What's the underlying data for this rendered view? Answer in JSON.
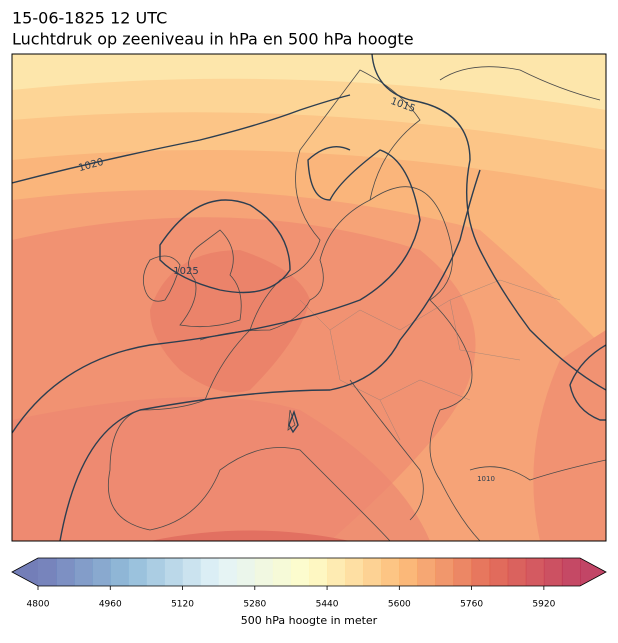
{
  "header": {
    "title": "15-06-1825 12 UTC",
    "subtitle": "Luchtdruk op zeeniveau in hPa en 500 hPa hoogte"
  },
  "map": {
    "isobar_labels": [
      "1015",
      "1020",
      "1025",
      "1010"
    ]
  },
  "colorbar": {
    "type": "colorbar",
    "lim": [
      4800,
      6000
    ],
    "ticks": [
      4800,
      4960,
      5120,
      5280,
      5440,
      5600,
      5760,
      5920
    ],
    "label": "500 hPa hoogte in meter"
  }
}
